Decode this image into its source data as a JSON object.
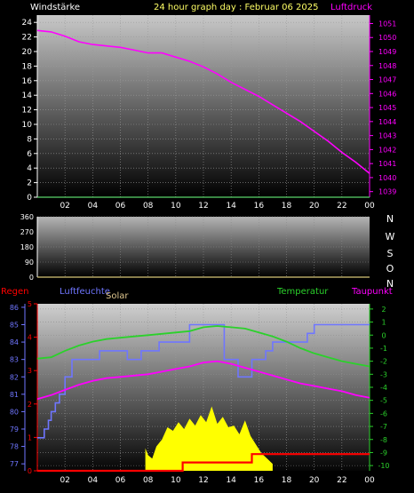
{
  "header": {
    "left_label": "Windstärke",
    "title": "24 hour graph day : Februar 06 2025",
    "right_label": "Luftdruck"
  },
  "colors": {
    "background": "#000000",
    "wind_axis": "#ffffff",
    "pressure": "#ff00ff",
    "humidity": "#6f76ff",
    "temperature": "#2bd12b",
    "dewpoint": "#ff00ff",
    "rain": "#ff0000",
    "solar": "#ffff00",
    "title": "#ffff66",
    "direction_axis": "#ffffff"
  },
  "chart_data": [
    {
      "type": "line",
      "panel": "wind-pressure",
      "x_ticks": [
        "02",
        "04",
        "06",
        "08",
        "10",
        "12",
        "14",
        "16",
        "18",
        "20",
        "22",
        "00"
      ],
      "y_left_ticks": [
        "0",
        "2",
        "4",
        "6",
        "8",
        "10",
        "12",
        "14",
        "16",
        "18",
        "20",
        "22",
        "24"
      ],
      "y_left_range": [
        0,
        25
      ],
      "y_right_ticks": [
        "1039",
        "1040",
        "1041",
        "1042",
        "1043",
        "1044",
        "1045",
        "1046",
        "1047",
        "1048",
        "1049",
        "1050",
        "1051"
      ],
      "y_right_range": [
        1038.6,
        1051.6
      ],
      "x_range": [
        0,
        24
      ],
      "grid": true,
      "series": [
        {
          "name": "Luftdruck",
          "axis": "right",
          "x": [
            0,
            1,
            2,
            3,
            4,
            5,
            6,
            7,
            8,
            9,
            10,
            11,
            12,
            13,
            14,
            15,
            16,
            17,
            18,
            19,
            20,
            21,
            22,
            23,
            24
          ],
          "values": [
            1050.5,
            1050.4,
            1050.1,
            1049.7,
            1049.5,
            1049.4,
            1049.3,
            1049.1,
            1048.9,
            1048.9,
            1048.6,
            1048.3,
            1047.9,
            1047.4,
            1046.8,
            1046.3,
            1045.8,
            1045.2,
            1044.6,
            1044.0,
            1043.3,
            1042.6,
            1041.8,
            1041.1,
            1040.3
          ]
        },
        {
          "name": "Windstärke",
          "axis": "left",
          "x": [
            0,
            24
          ],
          "values": [
            0,
            0
          ]
        }
      ]
    },
    {
      "type": "line",
      "panel": "wind-direction",
      "x_range": [
        0,
        24
      ],
      "y_ticks": [
        "360",
        "270",
        "180",
        "90",
        "0"
      ],
      "y_range": [
        0,
        360
      ],
      "direction_labels": [
        "N",
        "W",
        "S",
        "O",
        "N"
      ],
      "grid": true,
      "series": [
        {
          "axis": "left",
          "x": [
            0,
            24
          ],
          "values": [
            0,
            0
          ]
        }
      ]
    },
    {
      "type": "line",
      "panel": "weather",
      "legend": [
        "Regen",
        "Luftfeuchte",
        "Solar",
        "Temperatur",
        "Taupunkt"
      ],
      "x_ticks": [
        "02",
        "04",
        "06",
        "08",
        "10",
        "12",
        "14",
        "16",
        "18",
        "20",
        "22",
        "00"
      ],
      "x_range": [
        0,
        24
      ],
      "humidity_ticks": [
        "77",
        "78",
        "79",
        "80",
        "81",
        "82",
        "83",
        "84",
        "85",
        "86"
      ],
      "humidity_range": [
        76.6,
        86.2
      ],
      "temp_ticks": [
        "2",
        "1",
        "0",
        "-1",
        "-2",
        "-3",
        "-4",
        "-5",
        "-6",
        "-7",
        "-8",
        "-9",
        "-10"
      ],
      "temp_range": [
        -10.4,
        2.4
      ],
      "rain_ticks": [
        "5",
        "4",
        "3",
        "2",
        "1",
        "0"
      ],
      "rain_range": [
        0,
        5
      ],
      "grid": true,
      "series": [
        {
          "name": "Luftfeuchte",
          "axis": "humidity",
          "x": [
            0.0,
            0.5,
            0.5,
            0.8,
            0.8,
            1.0,
            1.0,
            1.3,
            1.3,
            1.6,
            1.6,
            2.0,
            2.0,
            2.5,
            2.5,
            4.5,
            4.5,
            6.5,
            6.5,
            7.5,
            7.5,
            8.8,
            8.8,
            11.0,
            11.0,
            13.5,
            13.5,
            14.5,
            14.5,
            15.5,
            15.5,
            16.5,
            16.5,
            17.0,
            17.0,
            19.5,
            19.5,
            20.0,
            20.0,
            24.0
          ],
          "values": [
            78.5,
            78.5,
            79.0,
            79.0,
            79.5,
            79.5,
            80.0,
            80.0,
            80.5,
            80.5,
            81.0,
            81.0,
            82.0,
            82.0,
            83.0,
            83.0,
            83.5,
            83.5,
            83.0,
            83.0,
            83.5,
            83.5,
            84.0,
            84.0,
            85.0,
            85.0,
            83.0,
            83.0,
            82.0,
            82.0,
            83.0,
            83.0,
            83.5,
            83.5,
            84.0,
            84.0,
            84.5,
            84.5,
            85.0,
            85.0
          ]
        },
        {
          "name": "Temperatur",
          "axis": "temp",
          "x": [
            0,
            1,
            2,
            3,
            4,
            5,
            6,
            7,
            8,
            9,
            10,
            11,
            12,
            13,
            14,
            15,
            16,
            17,
            18,
            19,
            20,
            21,
            22,
            23,
            24
          ],
          "values": [
            -1.8,
            -1.7,
            -1.2,
            -0.8,
            -0.5,
            -0.3,
            -0.2,
            -0.1,
            0.0,
            0.1,
            0.2,
            0.3,
            0.6,
            0.7,
            0.6,
            0.5,
            0.2,
            -0.1,
            -0.5,
            -1.0,
            -1.4,
            -1.7,
            -2.0,
            -2.2,
            -2.4
          ]
        },
        {
          "name": "Taupunkt",
          "axis": "temp",
          "x": [
            0,
            1,
            2,
            3,
            4,
            5,
            6,
            7,
            8,
            9,
            10,
            11,
            12,
            13,
            14,
            15,
            16,
            17,
            18,
            19,
            20,
            21,
            22,
            23,
            24
          ],
          "values": [
            -4.9,
            -4.6,
            -4.2,
            -3.8,
            -3.5,
            -3.3,
            -3.2,
            -3.1,
            -3.0,
            -2.8,
            -2.6,
            -2.4,
            -2.1,
            -2.0,
            -2.2,
            -2.5,
            -2.8,
            -3.1,
            -3.4,
            -3.7,
            -3.9,
            -4.1,
            -4.3,
            -4.6,
            -4.8
          ]
        },
        {
          "name": "Regen",
          "axis": "rain",
          "x": [
            0.0,
            10.5,
            10.5,
            15.5,
            15.5,
            24.0
          ],
          "values": [
            0.0,
            0.0,
            0.25,
            0.25,
            0.5,
            0.5
          ]
        },
        {
          "name": "Solar",
          "axis": "humidity",
          "x": [
            7.8,
            8.0,
            8.3,
            8.6,
            9.0,
            9.4,
            9.8,
            10.2,
            10.6,
            11.0,
            11.4,
            11.8,
            12.2,
            12.6,
            13.0,
            13.4,
            13.8,
            14.2,
            14.6,
            15.0,
            15.4,
            15.8,
            16.2,
            16.6,
            17.0
          ],
          "values": [
            77.9,
            77.5,
            77.3,
            78.0,
            78.4,
            79.1,
            78.9,
            79.4,
            79.0,
            79.6,
            79.2,
            79.8,
            79.4,
            80.3,
            79.3,
            79.7,
            79.1,
            79.2,
            78.7,
            79.5,
            78.6,
            78.1,
            77.6,
            77.3,
            77.0
          ]
        }
      ]
    }
  ]
}
